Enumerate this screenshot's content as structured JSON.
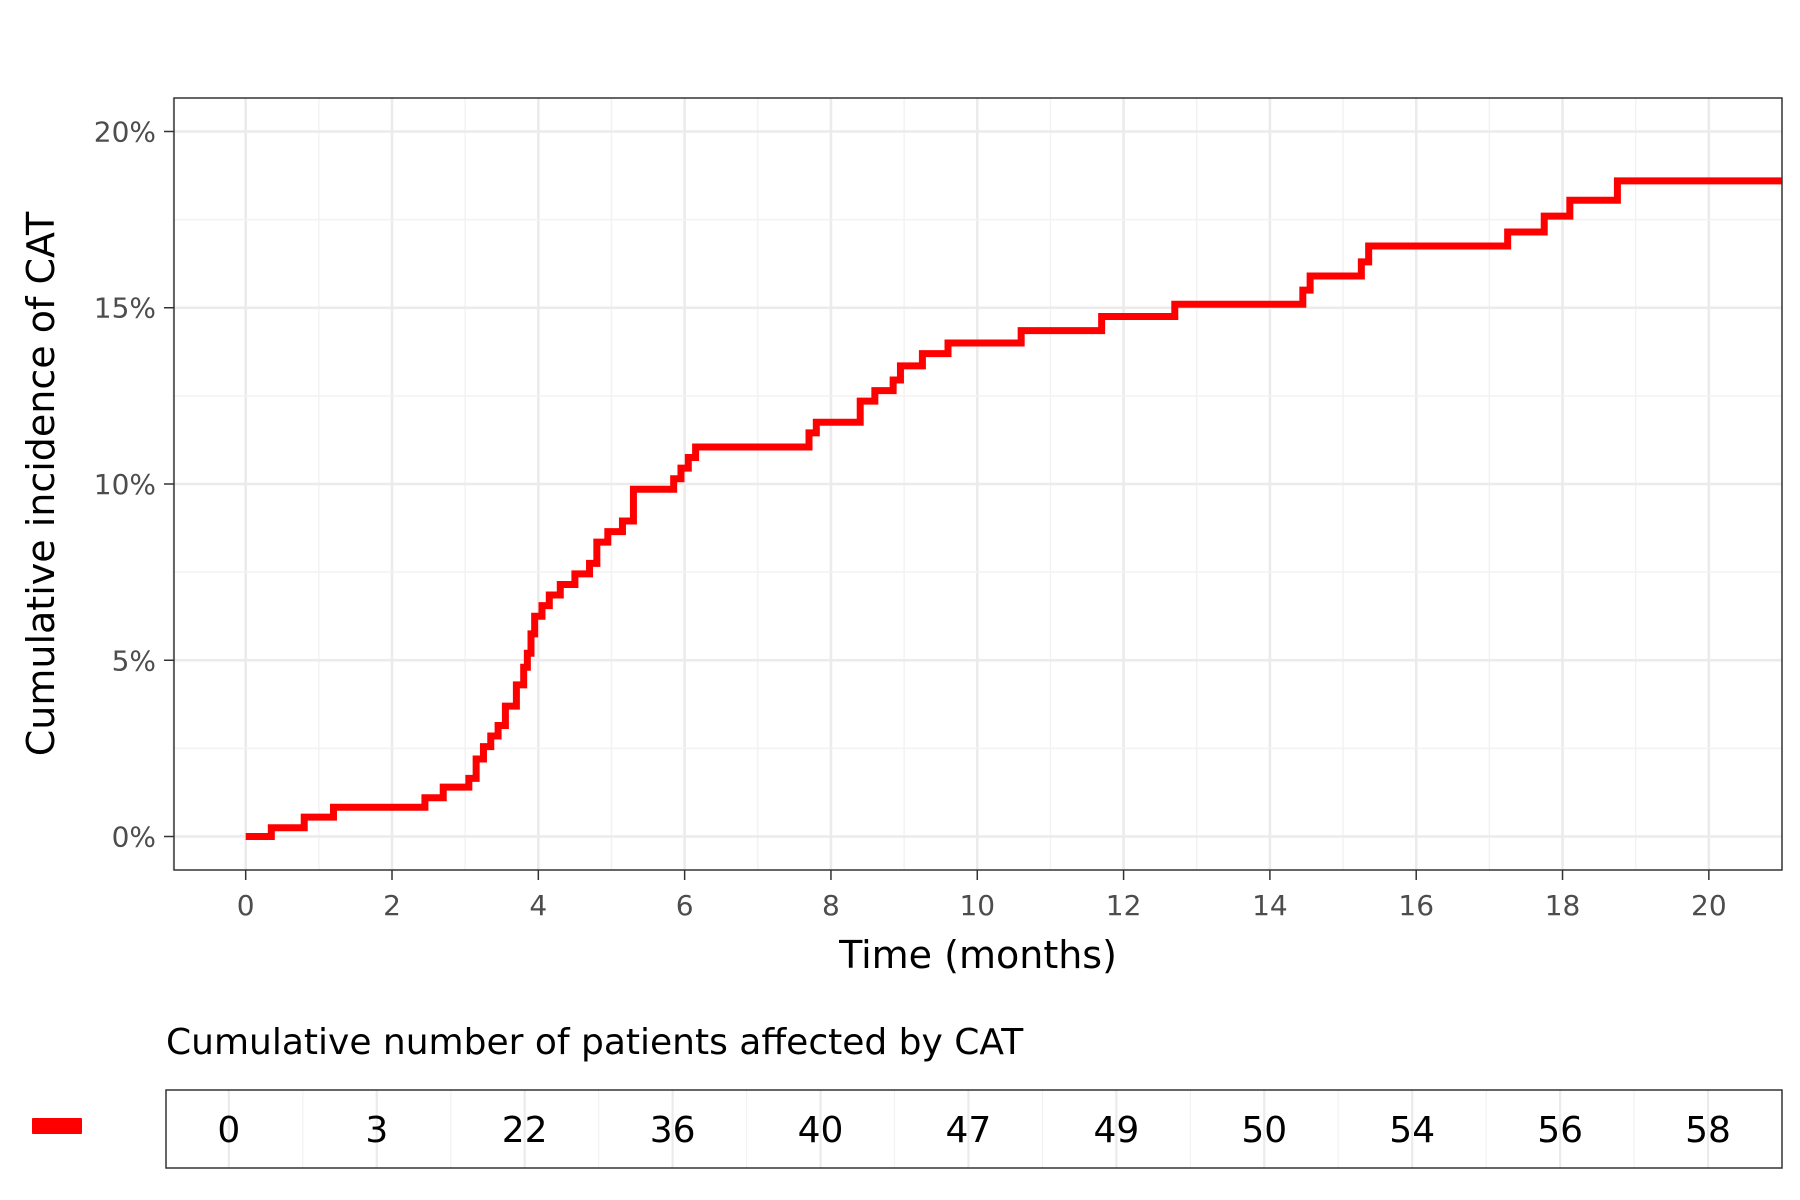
{
  "chart_data": [
    {
      "type": "line",
      "step": true,
      "xlabel": "Time (months)",
      "ylabel": "Cumulative incidence of CAT",
      "xlim": [
        0,
        21
      ],
      "ylim": [
        0,
        0.2
      ],
      "x_ticks": [
        0,
        2,
        4,
        6,
        8,
        10,
        12,
        14,
        16,
        18,
        20
      ],
      "x_tick_labels": [
        "0",
        "2",
        "4",
        "6",
        "8",
        "10",
        "12",
        "14",
        "16",
        "18",
        "20"
      ],
      "y_ticks": [
        0,
        0.05,
        0.1,
        0.15,
        0.2
      ],
      "y_tick_labels": [
        "0%",
        "5%",
        "10%",
        "15%",
        "20%"
      ],
      "grid": true,
      "legend": "none",
      "series_color": "#ff0000",
      "series": [
        {
          "x": [
            0,
            0.35,
            0.8,
            1.2,
            2.45,
            2.7,
            3.05,
            3.15,
            3.25,
            3.35,
            3.45,
            3.55,
            3.7,
            3.8,
            3.85,
            3.9,
            3.95,
            4.05,
            4.15,
            4.3,
            4.5,
            4.7,
            4.8,
            4.95,
            5.15,
            5.3,
            5.85,
            5.95,
            6.05,
            6.15,
            7.7,
            7.8,
            8.4,
            8.6,
            8.85,
            8.95,
            9.25,
            9.6,
            10.6,
            11.7,
            12.7,
            14.45,
            14.55,
            15.25,
            15.35,
            17.25,
            17.75,
            18.1,
            18.75,
            21
          ],
          "y": [
            0,
            0.0025,
            0.0055,
            0.0083,
            0.011,
            0.014,
            0.0165,
            0.022,
            0.0255,
            0.0285,
            0.0315,
            0.037,
            0.043,
            0.048,
            0.052,
            0.0575,
            0.0625,
            0.0655,
            0.0685,
            0.0715,
            0.0745,
            0.0775,
            0.0835,
            0.0865,
            0.0895,
            0.0985,
            0.1015,
            0.1045,
            0.1075,
            0.1105,
            0.1145,
            0.1175,
            0.1235,
            0.1265,
            0.1295,
            0.1335,
            0.137,
            0.14,
            0.1435,
            0.1475,
            0.151,
            0.155,
            0.159,
            0.163,
            0.1675,
            0.1715,
            0.176,
            0.1805,
            0.186,
            0.186
          ]
        }
      ]
    },
    {
      "type": "table",
      "title": "Cumulative number of patients affected by CAT",
      "x": [
        0,
        2,
        4,
        6,
        8,
        10,
        12,
        14,
        16,
        18,
        20
      ],
      "values": [
        "0",
        "3",
        "22",
        "36",
        "40",
        "47",
        "49",
        "50",
        "54",
        "56",
        "58"
      ],
      "legend_key_color": "#ff0000"
    }
  ]
}
